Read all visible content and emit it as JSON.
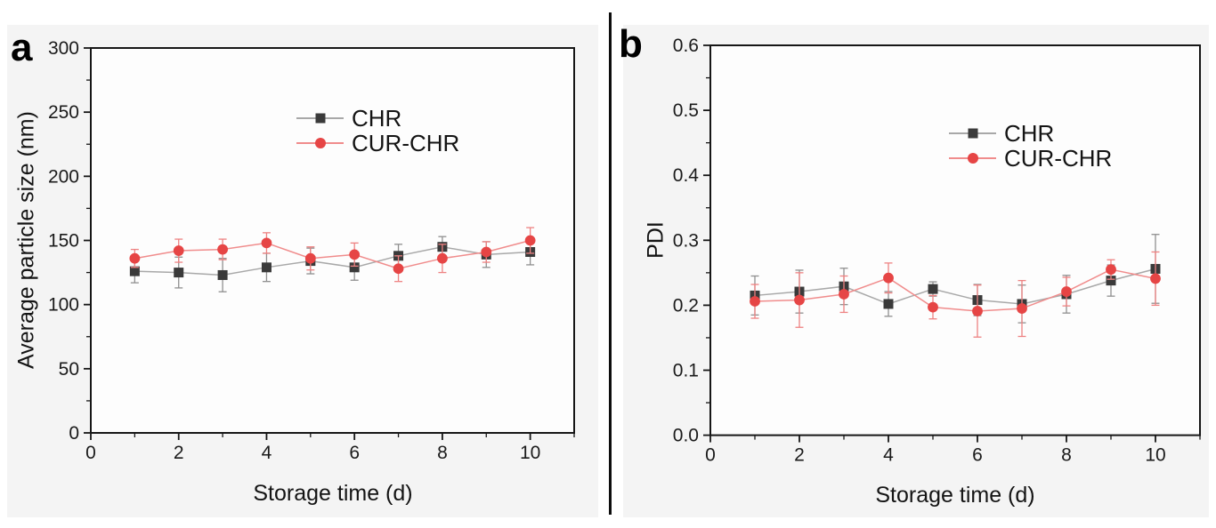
{
  "figure_colors": {
    "chr_marker": "#3a3a3a",
    "chr_line": "#a8a8a8",
    "chr_error": "#8f8f8f",
    "cur_marker": "#e64545",
    "cur_line": "#f08c8c",
    "cur_error": "#ee8282",
    "axis": "#161616",
    "panel_bg": "#f4f4f4",
    "plot_bg": "#fdfdfd"
  },
  "chart_data": [
    {
      "type": "line",
      "panel_label": "a",
      "xlabel": "Storage time (d)",
      "ylabel": "Average particle size (nm)",
      "xlim": [
        0,
        11
      ],
      "ylim": [
        0,
        300
      ],
      "x": [
        1,
        2,
        3,
        4,
        5,
        6,
        7,
        8,
        9,
        10
      ],
      "x_major_ticks": [
        0,
        2,
        4,
        6,
        8,
        10
      ],
      "x_tick_labels": [
        "0",
        "2",
        "4",
        "6",
        "8",
        "10"
      ],
      "x_minor_ticks": [
        1,
        3,
        5,
        7,
        9,
        11
      ],
      "y_major_ticks": [
        0,
        50,
        100,
        150,
        200,
        250,
        300
      ],
      "y_tick_labels": [
        "0",
        "50",
        "100",
        "150",
        "200",
        "250",
        "300"
      ],
      "y_minor_ticks": [
        25,
        75,
        125,
        175,
        225,
        275
      ],
      "grid": false,
      "legend_position": "upper-center-inside",
      "series": [
        {
          "name": "CHR",
          "marker": "square",
          "color": "#3a3a3a",
          "line_color": "#a8a8a8",
          "error_color": "#8f8f8f",
          "values": [
            126,
            125,
            123,
            129,
            134,
            129,
            138,
            145,
            139,
            141
          ],
          "errors": [
            9,
            12,
            13,
            11,
            10,
            10,
            9,
            8,
            10,
            10
          ]
        },
        {
          "name": "CUR-CHR",
          "marker": "circle",
          "color": "#e64545",
          "line_color": "#f08c8c",
          "error_color": "#ee8282",
          "values": [
            136,
            142,
            143,
            148,
            136,
            139,
            128,
            136,
            141,
            150
          ],
          "errors": [
            7,
            9,
            8,
            8,
            9,
            9,
            10,
            11,
            8,
            10
          ]
        }
      ]
    },
    {
      "type": "line",
      "panel_label": "b",
      "xlabel": "Storage time (d)",
      "ylabel": "PDI",
      "xlim": [
        0,
        11
      ],
      "ylim": [
        0,
        0.6
      ],
      "x": [
        1,
        2,
        3,
        4,
        5,
        6,
        7,
        8,
        9,
        10
      ],
      "x_major_ticks": [
        0,
        2,
        4,
        6,
        8,
        10
      ],
      "x_tick_labels": [
        "0",
        "2",
        "4",
        "6",
        "8",
        "10"
      ],
      "x_minor_ticks": [
        1,
        3,
        5,
        7,
        9,
        11
      ],
      "y_major_ticks": [
        0.0,
        0.1,
        0.2,
        0.3,
        0.4,
        0.5,
        0.6
      ],
      "y_tick_labels": [
        "0.0",
        "0.1",
        "0.2",
        "0.3",
        "0.4",
        "0.5",
        "0.6"
      ],
      "y_minor_ticks": [
        0.05,
        0.15,
        0.25,
        0.35,
        0.45,
        0.55
      ],
      "grid": false,
      "legend_position": "upper-right-inside",
      "series": [
        {
          "name": "CHR",
          "marker": "square",
          "color": "#3a3a3a",
          "line_color": "#a8a8a8",
          "error_color": "#8f8f8f",
          "values": [
            0.215,
            0.221,
            0.229,
            0.202,
            0.225,
            0.208,
            0.202,
            0.217,
            0.238,
            0.256
          ],
          "errors": [
            0.03,
            0.033,
            0.028,
            0.019,
            0.011,
            0.024,
            0.029,
            0.029,
            0.024,
            0.053
          ]
        },
        {
          "name": "CUR-CHR",
          "marker": "circle",
          "color": "#e64545",
          "line_color": "#f08c8c",
          "error_color": "#ee8282",
          "values": [
            0.206,
            0.208,
            0.217,
            0.242,
            0.197,
            0.191,
            0.195,
            0.221,
            0.255,
            0.241
          ],
          "errors": [
            0.026,
            0.042,
            0.028,
            0.023,
            0.018,
            0.04,
            0.043,
            0.022,
            0.015,
            0.041
          ]
        }
      ]
    }
  ]
}
